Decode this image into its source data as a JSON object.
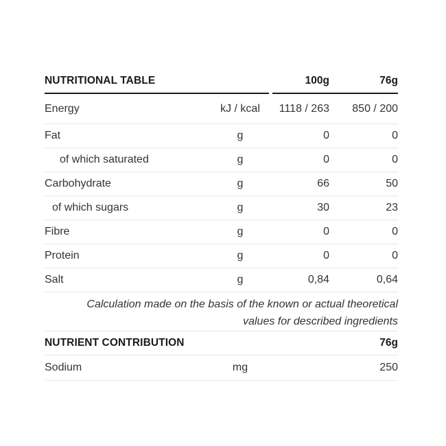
{
  "colors": {
    "background": "#ffffff",
    "text_body": "#333333",
    "text_header": "#1a1a1a",
    "rule_thick": "#1a1a1a",
    "rule_thin": "#e7e7e7"
  },
  "nutritional_table": {
    "title": "NUTRITIONAL TABLE",
    "col_100g": "100g",
    "col_76g": "76g",
    "rows": [
      {
        "label": "Energy",
        "unit": "kJ / kcal",
        "v100": "1118 / 263",
        "v76": "850 / 200"
      },
      {
        "label": "Fat",
        "unit": "g",
        "v100": "0",
        "v76": "0"
      },
      {
        "label": "of which saturated",
        "unit": "g",
        "v100": "0",
        "v76": "0"
      },
      {
        "label": "Carbohydrate",
        "unit": "g",
        "v100": "66",
        "v76": "50"
      },
      {
        "label": "of which sugars",
        "unit": "g",
        "v100": "30",
        "v76": "23"
      },
      {
        "label": "Fibre",
        "unit": "g",
        "v100": "0",
        "v76": "0"
      },
      {
        "label": "Protein",
        "unit": "g",
        "v100": "0",
        "v76": "0"
      },
      {
        "label": "Salt",
        "unit": "g",
        "v100": "0,84",
        "v76": "0,64"
      }
    ],
    "note_line1": "Calculation made on the basis of the known or actual theoretical",
    "note_line2": "values for described ingredients"
  },
  "nutrient_contribution": {
    "title": "NUTRIENT CONTRIBUTION",
    "col_76g": "76g",
    "rows": [
      {
        "label": "Sodium",
        "unit": "mg",
        "v76": "250"
      }
    ]
  }
}
